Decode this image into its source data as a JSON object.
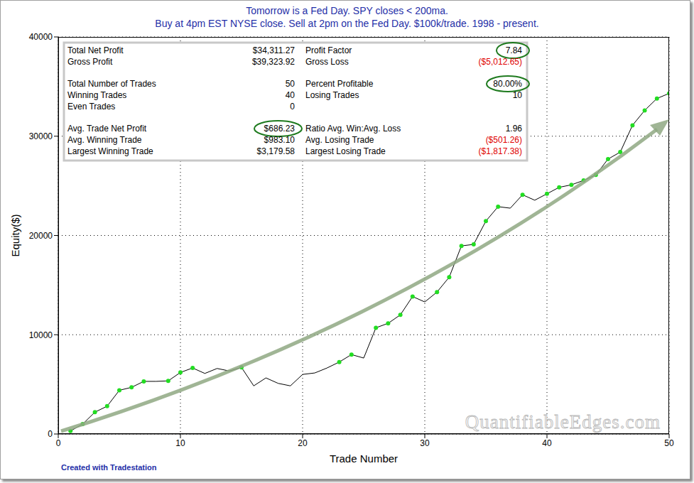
{
  "chart_data": {
    "type": "line",
    "title": "Tomorrow is a Fed Day. SPY closes < 200ma.",
    "subtitle": "Buy at 4pm EST NYSE close. Sell at 2pm on the Fed Day. $100k/trade. 1998 - present.",
    "xlabel": "Trade Number",
    "ylabel": "Equity($)",
    "x": [
      1,
      2,
      3,
      4,
      5,
      6,
      7,
      8,
      9,
      10,
      11,
      12,
      13,
      14,
      15,
      16,
      17,
      18,
      19,
      20,
      21,
      22,
      23,
      24,
      25,
      26,
      27,
      28,
      29,
      30,
      31,
      32,
      33,
      34,
      35,
      36,
      37,
      38,
      39,
      40,
      41,
      42,
      43,
      44,
      45,
      46,
      47,
      48,
      49,
      50
    ],
    "values": [
      300,
      1000,
      2200,
      2800,
      4400,
      4700,
      5300,
      5300,
      5350,
      6200,
      6650,
      6100,
      6600,
      6350,
      6700,
      4850,
      5650,
      5100,
      4850,
      6000,
      6150,
      6650,
      7250,
      8000,
      7650,
      10700,
      11150,
      12000,
      13850,
      13300,
      14300,
      15800,
      18950,
      19100,
      21450,
      22900,
      22750,
      24100,
      23550,
      24200,
      24850,
      25100,
      25550,
      26100,
      27700,
      28400,
      31100,
      32600,
      33800,
      34311.27
    ],
    "color": "#000000",
    "marker": "circle",
    "xlim": [
      0,
      50
    ],
    "xticks": [
      0,
      10,
      20,
      30,
      40,
      50
    ],
    "ylim": [
      0,
      40000
    ],
    "yticks": [
      0,
      10000,
      20000,
      30000,
      40000
    ],
    "grid": true,
    "stats": [
      [
        [
          "Total Net Profit",
          "$34,311.27",
          "Profit Factor",
          "7.84"
        ],
        [
          "Gross Profit",
          "$39,323.92",
          "Gross Loss",
          "($5,012.65)"
        ]
      ],
      [
        [
          "Total Number of Trades",
          "50",
          "Percent Profitable",
          "80.00%"
        ],
        [
          "Winning Trades",
          "40",
          "Losing Trades",
          "10"
        ],
        [
          "Even Trades",
          "0"
        ]
      ],
      [
        [
          "Avg. Trade Net Profit",
          "$686.23",
          "Ratio Avg. Win:Avg. Loss",
          "1.96"
        ],
        [
          "Avg. Winning Trade",
          "$983.10",
          "Avg. Losing Trade",
          "($501.26)"
        ],
        [
          "Largest Winning Trade",
          "$3,179.58",
          "Largest Losing Trade",
          "($1,817.38)"
        ]
      ]
    ],
    "watermark": "QuantifiableEdges.com",
    "footnote": "Created with Tradestation"
  }
}
